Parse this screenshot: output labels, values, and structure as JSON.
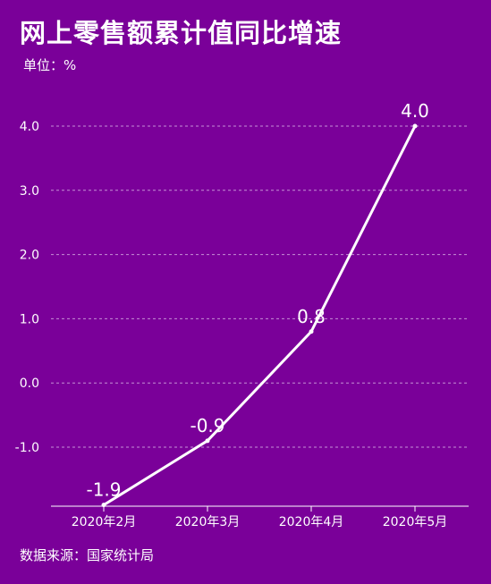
{
  "header": {
    "title": "网上零售额累计值同比增速",
    "unit": "单位：%"
  },
  "footer": {
    "source": "数据来源：国家统计局"
  },
  "colors": {
    "background": "#7a0099",
    "line": "#ffffff",
    "grid": "#c58fd6"
  },
  "chart_data": {
    "type": "line",
    "categories": [
      "2020年2月",
      "2020年3月",
      "2020年4月",
      "2020年5月"
    ],
    "series": [
      {
        "values": [
          -1.9,
          -0.9,
          0.8,
          4.0
        ]
      }
    ],
    "data_labels": [
      "-1.9",
      "-0.9",
      "0.8",
      "4.0"
    ],
    "y_ticks": [
      4.0,
      3.0,
      2.0,
      1.0,
      0.0,
      -1.0
    ],
    "y_tick_labels": [
      "4.0",
      "3.0",
      "2.0",
      "1.0",
      "0.0",
      "-1.0"
    ],
    "ylim": [
      -1.9,
      4.0
    ],
    "grid": true,
    "legend": "none"
  }
}
